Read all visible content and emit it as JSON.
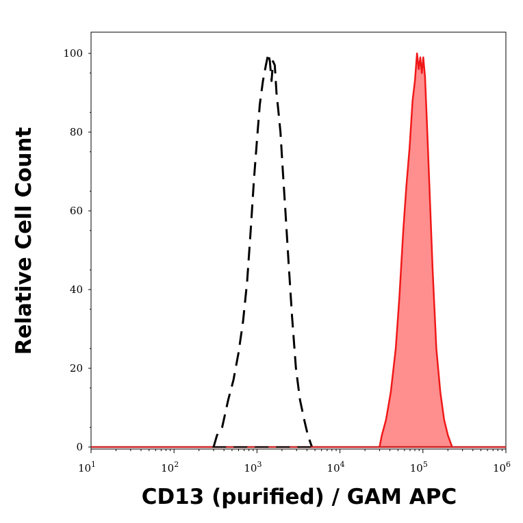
{
  "chart_data": {
    "type": "area",
    "title": "",
    "xlabel": "CD13 (purified) / GAM APC",
    "ylabel": "Relative Cell Count",
    "x_scale": "log",
    "xlim": [
      10,
      1000000
    ],
    "ylim": [
      0,
      100
    ],
    "x_ticks": [
      {
        "base": "10",
        "exp": "1"
      },
      {
        "base": "10",
        "exp": "2"
      },
      {
        "base": "10",
        "exp": "3"
      },
      {
        "base": "10",
        "exp": "4"
      },
      {
        "base": "10",
        "exp": "5"
      },
      {
        "base": "10",
        "exp": "6"
      }
    ],
    "y_ticks": [
      "0",
      "20",
      "40",
      "60",
      "80",
      "100"
    ],
    "grid": false,
    "series": [
      {
        "style": "dashed-outline",
        "color": "#000000",
        "points": [
          [
            300,
            0
          ],
          [
            330,
            3
          ],
          [
            380,
            5
          ],
          [
            450,
            12
          ],
          [
            520,
            17
          ],
          [
            600,
            24
          ],
          [
            680,
            32
          ],
          [
            760,
            42
          ],
          [
            840,
            55
          ],
          [
            920,
            68
          ],
          [
            1000,
            78
          ],
          [
            1080,
            87
          ],
          [
            1180,
            93
          ],
          [
            1280,
            97
          ],
          [
            1370,
            100
          ],
          [
            1430,
            98
          ],
          [
            1500,
            93
          ],
          [
            1560,
            98
          ],
          [
            1640,
            97
          ],
          [
            1720,
            90
          ],
          [
            1800,
            86
          ],
          [
            1920,
            80
          ],
          [
            2050,
            70
          ],
          [
            2200,
            60
          ],
          [
            2400,
            47
          ],
          [
            2650,
            33
          ],
          [
            2950,
            20
          ],
          [
            3300,
            12
          ],
          [
            3700,
            7
          ],
          [
            4100,
            3
          ],
          [
            4600,
            0
          ]
        ]
      },
      {
        "style": "filled",
        "color": "#f01818",
        "fill": "#ff8e8e",
        "points": [
          [
            30000,
            0
          ],
          [
            32000,
            3
          ],
          [
            36000,
            7
          ],
          [
            41000,
            14
          ],
          [
            47000,
            25
          ],
          [
            52000,
            38
          ],
          [
            58000,
            55
          ],
          [
            63000,
            66
          ],
          [
            69000,
            76
          ],
          [
            75000,
            88
          ],
          [
            80000,
            93
          ],
          [
            85000,
            100
          ],
          [
            89000,
            96
          ],
          [
            93000,
            99
          ],
          [
            97000,
            95
          ],
          [
            101000,
            99
          ],
          [
            106000,
            94
          ],
          [
            113000,
            80
          ],
          [
            121000,
            64
          ],
          [
            131000,
            45
          ],
          [
            145000,
            25
          ],
          [
            162000,
            14
          ],
          [
            180000,
            7
          ],
          [
            200000,
            3
          ],
          [
            225000,
            0
          ]
        ]
      }
    ]
  }
}
